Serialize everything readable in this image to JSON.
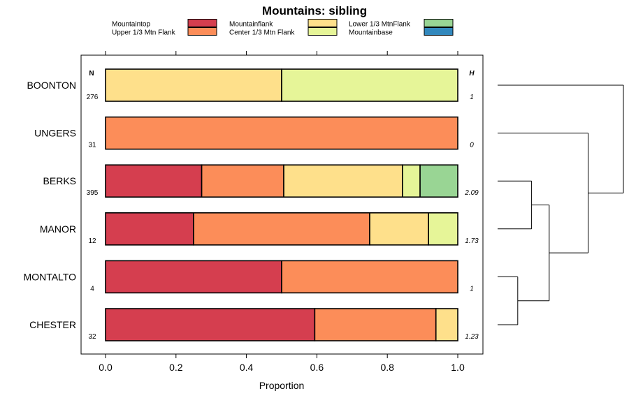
{
  "chart_data": {
    "type": "bar",
    "orientation": "horizontal",
    "stacked": true,
    "title": "Mountains: sibling",
    "xlabel": "Proportion",
    "xlim": [
      0,
      1
    ],
    "xticks": [
      "0.0",
      "0.2",
      "0.4",
      "0.6",
      "0.8",
      "1.0"
    ],
    "xtick_values": [
      0,
      0.2,
      0.4,
      0.6,
      0.8,
      1.0
    ],
    "n_header": "N",
    "h_header": "H",
    "legend": [
      {
        "name": "Mountaintop",
        "color": "#d53e4f"
      },
      {
        "name": "Upper 1/3 Mtn Flank",
        "color": "#fc8d59"
      },
      {
        "name": "Mountainflank",
        "color": "#fee08b"
      },
      {
        "name": "Center 1/3 Mtn Flank",
        "color": "#e6f598"
      },
      {
        "name": "Lower 1/3 MtnFlank",
        "color": "#99d594"
      },
      {
        "name": "Mountainbase",
        "color": "#3288bd"
      }
    ],
    "rows": [
      {
        "label": "BOONTON",
        "n": "276",
        "h": "1",
        "segments": [
          {
            "color": "#fee08b",
            "value": 0.5
          },
          {
            "color": "#e6f598",
            "value": 0.5
          }
        ]
      },
      {
        "label": "UNGERS",
        "n": "31",
        "h": "0",
        "segments": [
          {
            "color": "#fc8d59",
            "value": 1.0
          }
        ]
      },
      {
        "label": "BERKS",
        "n": "395",
        "h": "2.09",
        "segments": [
          {
            "color": "#d53e4f",
            "value": 0.273
          },
          {
            "color": "#fc8d59",
            "value": 0.233
          },
          {
            "color": "#fee08b",
            "value": 0.337
          },
          {
            "color": "#e6f598",
            "value": 0.05
          },
          {
            "color": "#99d594",
            "value": 0.107
          }
        ]
      },
      {
        "label": "MANOR",
        "n": "12",
        "h": "1.73",
        "segments": [
          {
            "color": "#d53e4f",
            "value": 0.25
          },
          {
            "color": "#fc8d59",
            "value": 0.5
          },
          {
            "color": "#fee08b",
            "value": 0.167
          },
          {
            "color": "#e6f598",
            "value": 0.083
          }
        ]
      },
      {
        "label": "MONTALTO",
        "n": "4",
        "h": "1",
        "segments": [
          {
            "color": "#d53e4f",
            "value": 0.5
          },
          {
            "color": "#fc8d59",
            "value": 0.5
          }
        ]
      },
      {
        "label": "CHESTER",
        "n": "32",
        "h": "1.23",
        "segments": [
          {
            "color": "#d53e4f",
            "value": 0.594
          },
          {
            "color": "#fc8d59",
            "value": 0.344
          },
          {
            "color": "#fee08b",
            "value": 0.062
          }
        ]
      }
    ],
    "dendrogram": {
      "leaf_order": [
        "BOONTON",
        "UNGERS",
        "BERKS",
        "MANOR",
        "MONTALTO",
        "CHESTER"
      ],
      "merges": [
        {
          "left": "BERKS",
          "right": "MANOR",
          "height": 0.27
        },
        {
          "left": "MONTALTO",
          "right": "CHESTER",
          "height": 0.16
        },
        {
          "left": "m0",
          "right": "m1",
          "height": 0.41
        },
        {
          "left": "UNGERS",
          "right": "m2",
          "height": 0.72
        },
        {
          "left": "BOONTON",
          "right": "m3",
          "height": 1.0
        }
      ]
    }
  }
}
